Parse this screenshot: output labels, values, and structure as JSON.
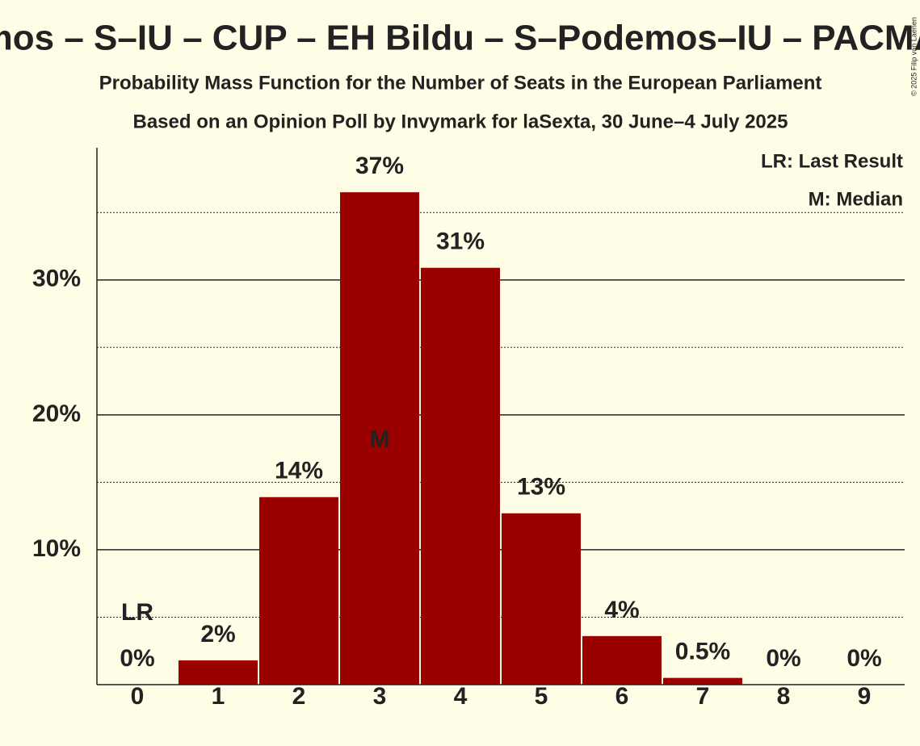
{
  "chart_data": {
    "type": "bar",
    "title": "mos – S–IU – CUP – EH Bildu – S–Podemos–IU – PACMA",
    "subtitle": "Probability Mass Function for the Number of Seats in the European Parliament",
    "subtitle2": "Based on an Opinion Poll by Invymark for laSexta, 30 June–4 July 2025",
    "copyright": "© 2025 Filip van Laenen",
    "categories": [
      "0",
      "1",
      "2",
      "3",
      "4",
      "5",
      "6",
      "7",
      "8",
      "9"
    ],
    "values": [
      0,
      1.8,
      13.9,
      36.5,
      30.9,
      12.7,
      3.6,
      0.5,
      0,
      0
    ],
    "value_labels": [
      "0%",
      "2%",
      "14%",
      "37%",
      "31%",
      "13%",
      "4%",
      "0.5%",
      "0%",
      "0%"
    ],
    "color": "#990000",
    "ylim": [
      0,
      39.8
    ],
    "yticks": [
      {
        "value": 10,
        "label": "10%"
      },
      {
        "value": 20,
        "label": "20%"
      },
      {
        "value": 30,
        "label": "30%"
      }
    ],
    "minor_yticks": [
      5,
      15,
      25,
      35
    ],
    "grid": true,
    "annotations": [
      {
        "category": 0,
        "text": "LR"
      },
      {
        "category": 3,
        "text": "M"
      }
    ],
    "legend": [
      "LR: Last Result",
      "M: Median"
    ],
    "legend_position": "top-right"
  }
}
